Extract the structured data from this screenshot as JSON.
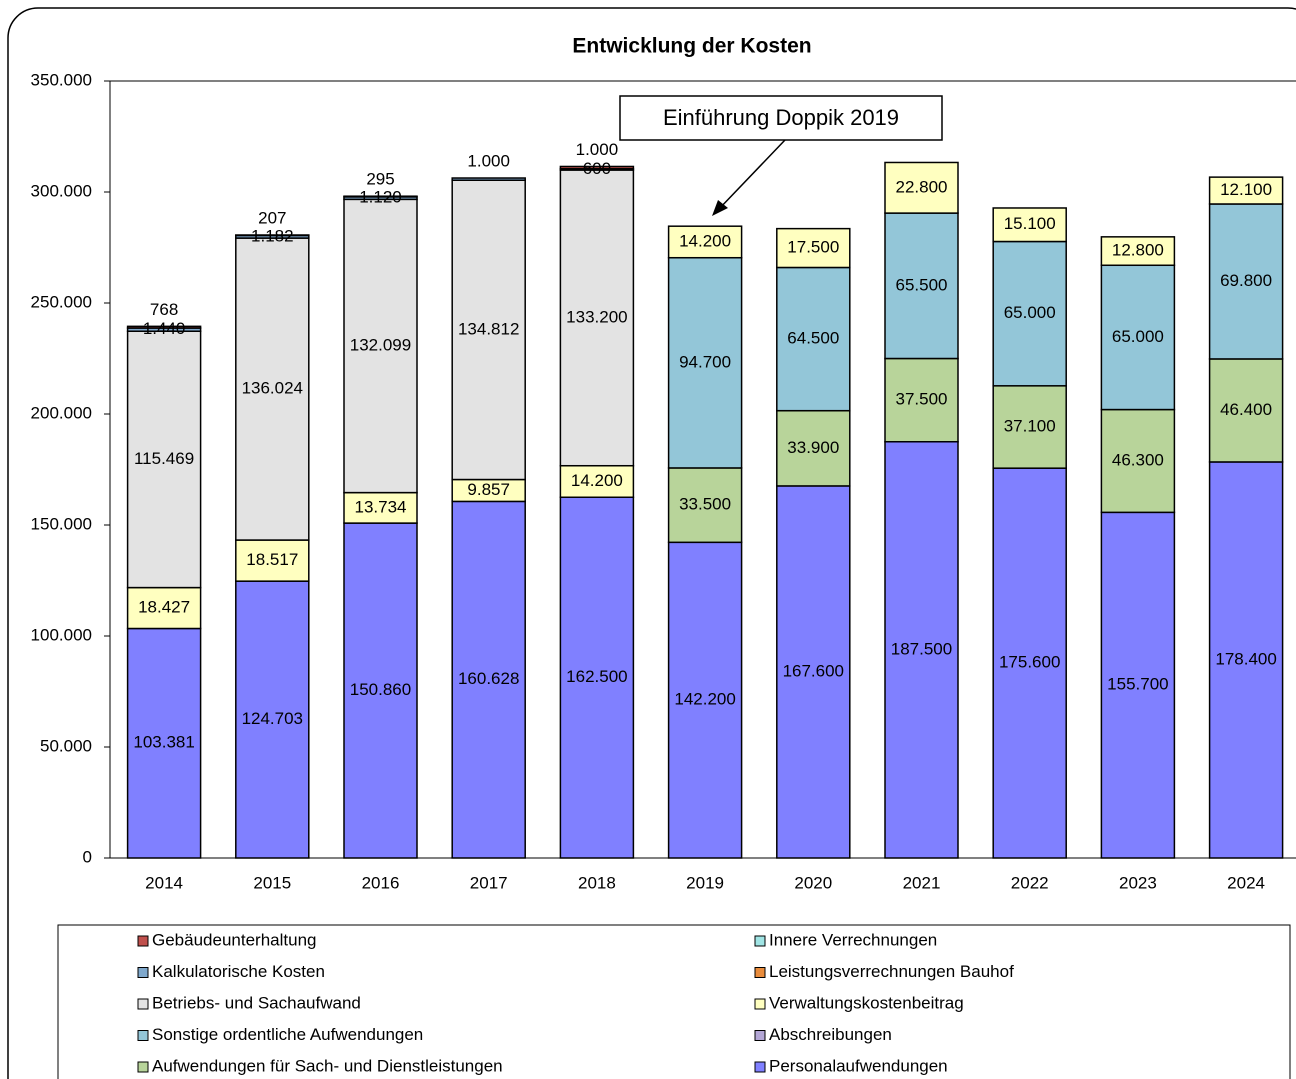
{
  "chart_data": {
    "type": "stacked_bar",
    "title": "Entwicklung der Kosten",
    "annotation": "Einführung Doppik 2019",
    "categories": [
      "2014",
      "2015",
      "2016",
      "2017",
      "2018",
      "2019",
      "2020",
      "2021",
      "2022",
      "2023",
      "2024"
    ],
    "ylim": [
      0,
      350000
    ],
    "yticks": [
      0,
      {
        "value": 50000,
        "label": "50.000"
      },
      {
        "value": 100000,
        "label": "100.000"
      },
      {
        "value": 150000,
        "label": "150.000"
      },
      {
        "value": 200000,
        "label": "200.000"
      },
      {
        "value": 250000,
        "label": "250.000"
      },
      {
        "value": 300000,
        "label": "300.000"
      },
      {
        "value": 350000,
        "label": "350.000"
      }
    ],
    "grid": false,
    "legend": "bottom",
    "series": [
      {
        "name": "Gebäudeunterhaltung",
        "color": "#c0504d",
        "values": [
          768,
          207,
          295,
          null,
          1000,
          null,
          null,
          null,
          null,
          null,
          null
        ],
        "value_labels": [
          "768",
          "207",
          "295",
          null,
          "1.000",
          null,
          null,
          null,
          null,
          null,
          null
        ]
      },
      {
        "name": "Innere Verrechnungen",
        "color": "#a0e4e4",
        "values": [
          null,
          null,
          null,
          null,
          null,
          null,
          null,
          null,
          null,
          null,
          null
        ]
      },
      {
        "name": "Kalkulatorische Kosten",
        "color": "#7fa8cc",
        "values": [
          1440,
          1182,
          1120,
          1000,
          600,
          null,
          null,
          null,
          null,
          null,
          null
        ],
        "value_labels": [
          "1.440",
          "1.182",
          "1.120",
          "1.000",
          "600",
          null,
          null,
          null,
          null,
          null,
          null
        ]
      },
      {
        "name": "Leistungsverrechnungen Bauhof",
        "color": "#e98c3c",
        "values": [
          null,
          null,
          null,
          null,
          null,
          null,
          null,
          null,
          null,
          null,
          null
        ]
      },
      {
        "name": "Betriebs- und Sachaufwand",
        "color": "#e3e3e3",
        "values": [
          115469,
          136024,
          132099,
          134812,
          133200,
          null,
          null,
          null,
          null,
          null,
          null
        ],
        "value_labels": [
          "115.469",
          "136.024",
          "132.099",
          "134.812",
          "133.200",
          null,
          null,
          null,
          null,
          null,
          null
        ]
      },
      {
        "name": "Verwaltungskostenbeitrag",
        "color": "#ffffc0",
        "values": [
          18427,
          18517,
          13734,
          9857,
          14200,
          14200,
          17500,
          22800,
          15100,
          12800,
          12100
        ],
        "value_labels": [
          "18.427",
          "18.517",
          "13.734",
          "9.857",
          "14.200",
          "14.200",
          "17.500",
          "22.800",
          "15.100",
          "12.800",
          "12.100"
        ]
      },
      {
        "name": "Sonstige ordentliche Aufwendungen",
        "color": "#93c6d8",
        "values": [
          null,
          null,
          null,
          null,
          null,
          94700,
          64500,
          65500,
          65000,
          65000,
          69800
        ],
        "value_labels": [
          null,
          null,
          null,
          null,
          null,
          "94.700",
          "64.500",
          "65.500",
          "65.000",
          "65.000",
          "69.800"
        ]
      },
      {
        "name": "Abschreibungen",
        "color": "#b4a7d6",
        "values": [
          null,
          null,
          null,
          null,
          null,
          null,
          null,
          null,
          null,
          null,
          null
        ]
      },
      {
        "name": "Aufwendungen für Sach- und Dienstleistungen",
        "color": "#b8d49a",
        "values": [
          null,
          null,
          null,
          null,
          null,
          33500,
          33900,
          37500,
          37100,
          46300,
          46400
        ],
        "value_labels": [
          null,
          null,
          null,
          null,
          null,
          "33.500",
          "33.900",
          "37.500",
          "37.100",
          "46.300",
          "46.400"
        ]
      },
      {
        "name": "Personalaufwendungen",
        "color": "#8080ff",
        "values": [
          103381,
          124703,
          150860,
          160628,
          162500,
          142200,
          167600,
          187500,
          175600,
          155700,
          178400
        ],
        "value_labels": [
          "103.381",
          "124.703",
          "150.860",
          "160.628",
          "162.500",
          "142.200",
          "167.600",
          "187.500",
          "175.600",
          "155.700",
          "178.400"
        ]
      }
    ]
  }
}
